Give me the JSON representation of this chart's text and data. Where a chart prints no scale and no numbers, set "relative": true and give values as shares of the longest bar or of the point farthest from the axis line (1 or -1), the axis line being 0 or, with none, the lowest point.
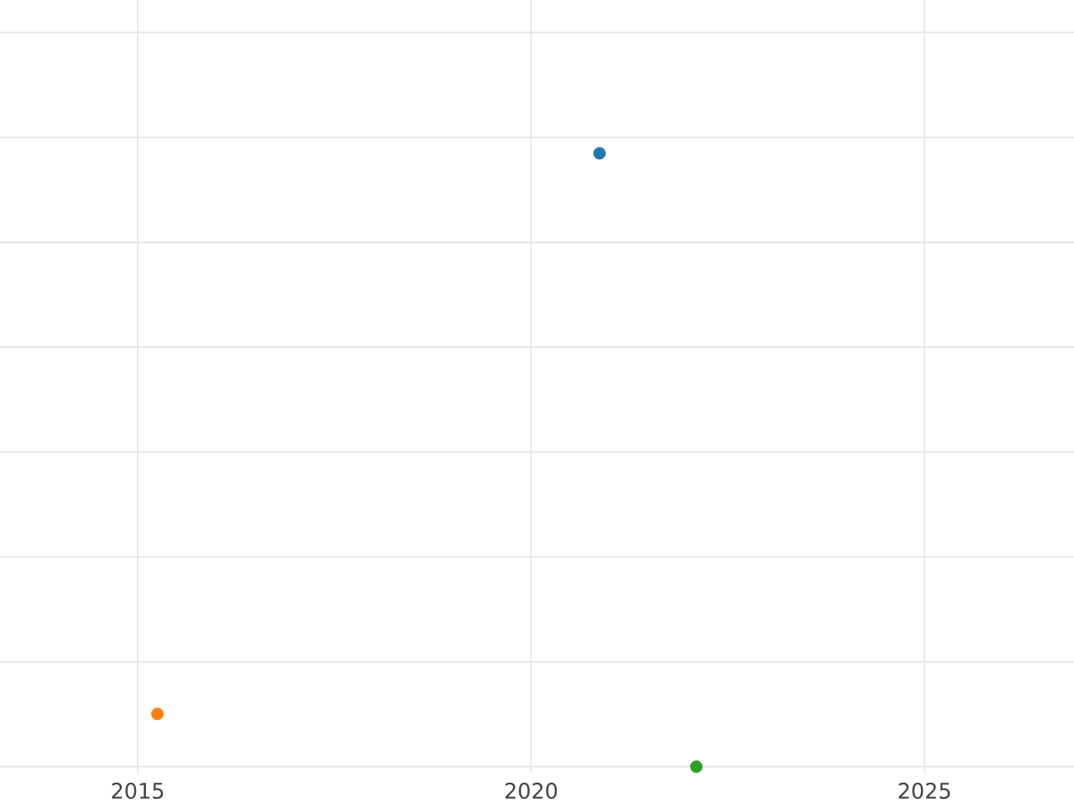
{
  "chart_data": {
    "type": "scatter",
    "relative": true,
    "x": [
      2020.87,
      2015.25,
      2022.1
    ],
    "values": [
      1,
      0.086,
      0
    ],
    "colors": [
      "#1f77b4",
      "#ff7f0e",
      "#2ca02c"
    ],
    "xlim": [
      2013.25,
      2026.9
    ],
    "xticks": [
      2015,
      2020,
      2025
    ],
    "grid": true,
    "marker": "circle",
    "tick_labels": "x"
  }
}
